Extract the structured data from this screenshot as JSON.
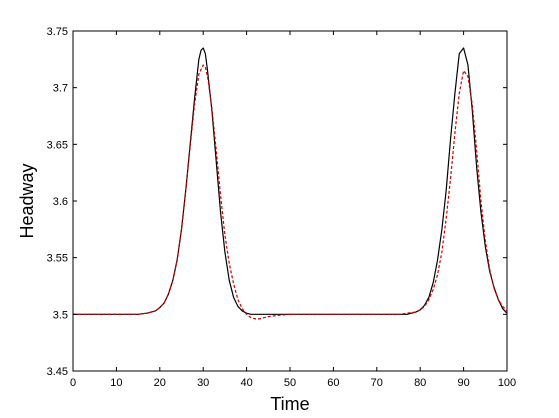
{
  "chart_data": {
    "type": "line",
    "xlabel": "Time",
    "ylabel": "Headway",
    "xlim": [
      0,
      100
    ],
    "ylim": [
      3.45,
      3.75
    ],
    "xticks": [
      "0",
      "10",
      "20",
      "30",
      "40",
      "50",
      "60",
      "70",
      "80",
      "90",
      "100"
    ],
    "yticks": [
      "3.45",
      "3.5",
      "3.55",
      "3.6",
      "3.65",
      "3.7",
      "3.75"
    ],
    "grid": false,
    "legend": "none",
    "series": [
      {
        "style": "solid",
        "color": "#000000",
        "x": [
          0,
          10,
          15,
          17,
          19,
          20,
          21,
          22,
          23,
          24,
          25,
          26,
          27,
          28,
          29,
          29.5,
          30,
          30.5,
          31,
          32,
          33,
          34,
          35,
          36,
          37,
          38,
          39,
          40,
          41,
          43,
          45,
          50,
          60,
          70,
          75,
          77,
          79,
          80,
          81,
          82,
          83,
          84,
          85,
          86,
          87,
          88,
          89,
          90,
          91,
          92,
          93,
          94,
          95,
          96,
          97,
          98,
          99,
          100
        ],
        "y": [
          3.5,
          3.5,
          3.5,
          3.501,
          3.503,
          3.506,
          3.51,
          3.518,
          3.53,
          3.548,
          3.575,
          3.61,
          3.65,
          3.69,
          3.725,
          3.733,
          3.735,
          3.73,
          3.715,
          3.68,
          3.635,
          3.59,
          3.555,
          3.53,
          3.515,
          3.507,
          3.503,
          3.501,
          3.5,
          3.5,
          3.5,
          3.5,
          3.5,
          3.5,
          3.5,
          3.5,
          3.502,
          3.504,
          3.508,
          3.515,
          3.528,
          3.548,
          3.575,
          3.61,
          3.655,
          3.695,
          3.73,
          3.735,
          3.72,
          3.68,
          3.63,
          3.59,
          3.56,
          3.538,
          3.524,
          3.513,
          3.505,
          3.501
        ]
      },
      {
        "style": "dashed",
        "color": "#cc0000",
        "x": [
          0,
          10,
          15,
          17,
          19,
          20,
          21,
          22,
          23,
          24,
          25,
          26,
          27,
          28,
          29,
          30,
          30.5,
          31,
          32,
          33,
          34,
          35,
          36,
          37,
          38,
          39,
          40,
          41,
          42,
          43,
          44,
          45,
          47,
          50,
          55,
          60,
          70,
          75,
          77,
          79,
          80,
          81,
          82,
          83,
          84,
          85,
          86,
          87,
          88,
          89,
          90,
          91,
          92,
          93,
          94,
          95,
          96,
          97,
          98,
          99,
          100
        ],
        "y": [
          3.5,
          3.5,
          3.5,
          3.501,
          3.503,
          3.506,
          3.51,
          3.518,
          3.53,
          3.548,
          3.575,
          3.61,
          3.648,
          3.685,
          3.712,
          3.72,
          3.718,
          3.71,
          3.682,
          3.645,
          3.605,
          3.57,
          3.545,
          3.527,
          3.513,
          3.505,
          3.5,
          3.497,
          3.496,
          3.496,
          3.497,
          3.498,
          3.499,
          3.5,
          3.5,
          3.5,
          3.5,
          3.5,
          3.501,
          3.502,
          3.504,
          3.507,
          3.513,
          3.522,
          3.535,
          3.555,
          3.585,
          3.62,
          3.66,
          3.695,
          3.715,
          3.71,
          3.685,
          3.645,
          3.6,
          3.565,
          3.54,
          3.523,
          3.513,
          3.507,
          3.503
        ]
      }
    ]
  }
}
